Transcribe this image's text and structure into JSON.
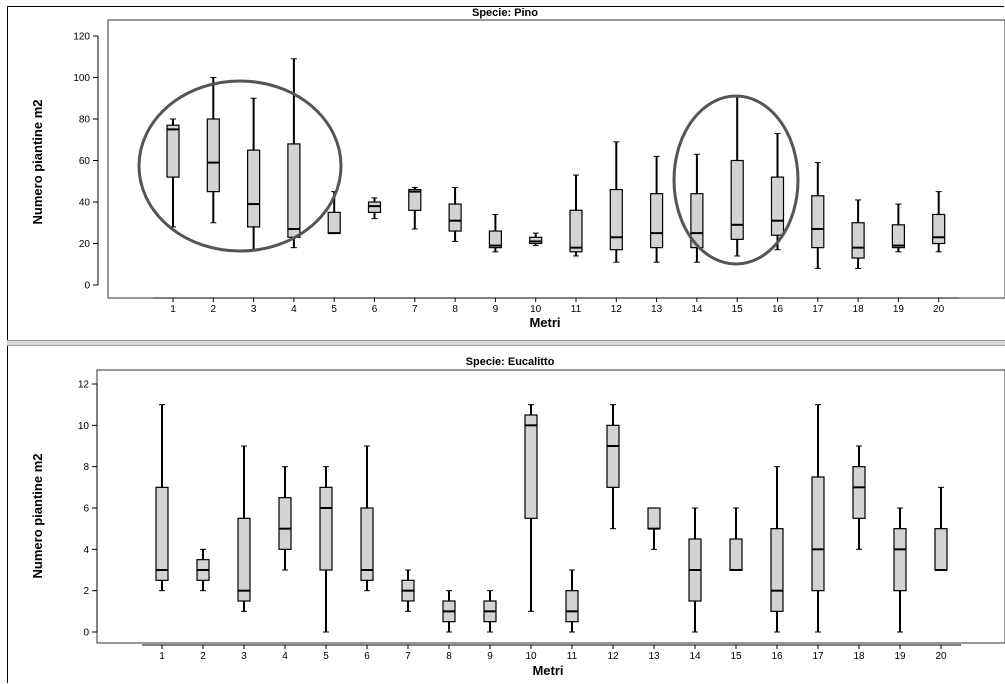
{
  "chart_data": [
    {
      "type": "box",
      "title": "Specie: Pino",
      "xlabel": "Metri",
      "ylabel": "Numero piantine m2",
      "ylim": [
        0,
        120
      ],
      "yticks": [
        0,
        20,
        40,
        60,
        80,
        100,
        120
      ],
      "categories": [
        "1",
        "2",
        "3",
        "4",
        "5",
        "6",
        "7",
        "8",
        "9",
        "10",
        "11",
        "12",
        "13",
        "14",
        "15",
        "16",
        "17",
        "18",
        "19",
        "20"
      ],
      "boxes": [
        {
          "min": 28,
          "q1": 52,
          "median": 75,
          "q3": 77,
          "max": 80
        },
        {
          "min": 30,
          "q1": 45,
          "median": 59,
          "q3": 80,
          "max": 100
        },
        {
          "min": 17,
          "q1": 28,
          "median": 39,
          "q3": 65,
          "max": 90
        },
        {
          "min": 18,
          "q1": 23,
          "median": 27,
          "q3": 68,
          "max": 109
        },
        {
          "min": 25,
          "q1": 25,
          "median": 25,
          "q3": 35,
          "max": 45
        },
        {
          "min": 32,
          "q1": 35,
          "median": 38,
          "q3": 40,
          "max": 42
        },
        {
          "min": 27,
          "q1": 36,
          "median": 45,
          "q3": 46,
          "max": 47
        },
        {
          "min": 21,
          "q1": 26,
          "median": 31,
          "q3": 39,
          "max": 47
        },
        {
          "min": 16,
          "q1": 18,
          "median": 19,
          "q3": 26,
          "max": 34
        },
        {
          "min": 19,
          "q1": 20,
          "median": 21,
          "q3": 23,
          "max": 25
        },
        {
          "min": 14,
          "q1": 16,
          "median": 18,
          "q3": 36,
          "max": 53
        },
        {
          "min": 11,
          "q1": 17,
          "median": 23,
          "q3": 46,
          "max": 69
        },
        {
          "min": 11,
          "q1": 18,
          "median": 25,
          "q3": 44,
          "max": 62
        },
        {
          "min": 11,
          "q1": 18,
          "median": 25,
          "q3": 44,
          "max": 63
        },
        {
          "min": 14,
          "q1": 22,
          "median": 29,
          "q3": 60,
          "max": 91
        },
        {
          "min": 17,
          "q1": 24,
          "median": 31,
          "q3": 52,
          "max": 73
        },
        {
          "min": 8,
          "q1": 18,
          "median": 27,
          "q3": 43,
          "max": 59
        },
        {
          "min": 8,
          "q1": 13,
          "median": 18,
          "q3": 30,
          "max": 41
        },
        {
          "min": 16,
          "q1": 18,
          "median": 19,
          "q3": 29,
          "max": 39
        },
        {
          "min": 16,
          "q1": 20,
          "median": 23,
          "q3": 34,
          "max": 45
        }
      ],
      "annotations": [
        "circle around metri 1-4",
        "ellipse around metri 14-16"
      ],
      "grid": false
    },
    {
      "type": "box",
      "title": "Specie: Eucalitto",
      "xlabel": "Metri",
      "ylabel": "Numero piantine m2",
      "ylim": [
        0,
        12
      ],
      "yticks": [
        0,
        2,
        4,
        6,
        8,
        10,
        12
      ],
      "categories": [
        "1",
        "2",
        "3",
        "4",
        "5",
        "6",
        "7",
        "8",
        "9",
        "10",
        "11",
        "12",
        "13",
        "14",
        "15",
        "16",
        "17",
        "18",
        "19",
        "20"
      ],
      "boxes": [
        {
          "min": 2,
          "q1": 2.5,
          "median": 3,
          "q3": 7,
          "max": 11
        },
        {
          "min": 2,
          "q1": 2.5,
          "median": 3,
          "q3": 3.5,
          "max": 4
        },
        {
          "min": 1,
          "q1": 1.5,
          "median": 2,
          "q3": 5.5,
          "max": 9
        },
        {
          "min": 3,
          "q1": 4,
          "median": 5,
          "q3": 6.5,
          "max": 8
        },
        {
          "min": 0,
          "q1": 3,
          "median": 6,
          "q3": 7,
          "max": 8
        },
        {
          "min": 2,
          "q1": 2.5,
          "median": 3,
          "q3": 6,
          "max": 9
        },
        {
          "min": 1,
          "q1": 1.5,
          "median": 2,
          "q3": 2.5,
          "max": 3
        },
        {
          "min": 0,
          "q1": 0.5,
          "median": 1,
          "q3": 1.5,
          "max": 2
        },
        {
          "min": 0,
          "q1": 0.5,
          "median": 1,
          "q3": 1.5,
          "max": 2
        },
        {
          "min": 1,
          "q1": 5.5,
          "median": 10,
          "q3": 10.5,
          "max": 11
        },
        {
          "min": 0,
          "q1": 0.5,
          "median": 1,
          "q3": 2,
          "max": 3
        },
        {
          "min": 5,
          "q1": 7,
          "median": 9,
          "q3": 10,
          "max": 11
        },
        {
          "min": 4,
          "q1": 5,
          "median": 5,
          "q3": 6,
          "max": 6
        },
        {
          "min": 0,
          "q1": 1.5,
          "median": 3,
          "q3": 4.5,
          "max": 6
        },
        {
          "min": 3,
          "q1": 3,
          "median": 3,
          "q3": 4.5,
          "max": 6
        },
        {
          "min": 0,
          "q1": 1,
          "median": 2,
          "q3": 5,
          "max": 8
        },
        {
          "min": 0,
          "q1": 2,
          "median": 4,
          "q3": 7.5,
          "max": 11
        },
        {
          "min": 4,
          "q1": 5.5,
          "median": 7,
          "q3": 8,
          "max": 9
        },
        {
          "min": 0,
          "q1": 2,
          "median": 4,
          "q3": 5,
          "max": 6
        },
        {
          "min": 3,
          "q1": 3,
          "median": 3,
          "q3": 5,
          "max": 7
        }
      ],
      "grid": false
    }
  ],
  "colors": {
    "box_fill": "#d3d3d3",
    "stroke": "#000000",
    "annotation": "#555555"
  }
}
